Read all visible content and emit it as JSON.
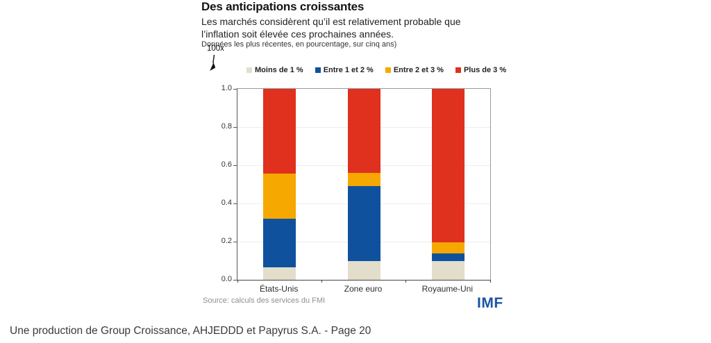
{
  "page": {
    "footer_text": "Une production de Group Croissance, AHJEDDD et Papyrus S.A. - Page 20"
  },
  "figure": {
    "title": "Des anticipations croissantes",
    "subtitle": "Les marchés considèrent qu’il est relativement probable que l’inflation soit élevée ces prochaines années.",
    "note": "Données les plus récentes, en pourcentage, sur cinq ans)",
    "scale_annotation": "100x",
    "source": "Source: calculs des services du FMI",
    "logo_text": "IMF",
    "logo_color": "#1a54a3"
  },
  "chart_data": {
    "type": "bar",
    "stacked": true,
    "title": "Des anticipations croissantes",
    "xlabel": "",
    "ylabel": "",
    "ylim": [
      0.0,
      1.0
    ],
    "grid": true,
    "legend_position": "top",
    "categories": [
      "États-Unis",
      "Zone euro",
      "Royaume-Uni"
    ],
    "series": [
      {
        "name": "Moins de 1 %",
        "color": "#e2decb",
        "values": [
          0.065,
          0.1,
          0.1
        ]
      },
      {
        "name": "Entre 1 et 2 %",
        "color": "#10519e",
        "values": [
          0.255,
          0.39,
          0.04
        ]
      },
      {
        "name": "Entre 2 et 3 %",
        "color": "#f6a800",
        "values": [
          0.235,
          0.07,
          0.055
        ]
      },
      {
        "name": "Plus de 3 %",
        "color": "#e0301e",
        "values": [
          0.445,
          0.44,
          0.805
        ]
      }
    ],
    "yticks": [
      {
        "label": "0.0",
        "value": 0.0
      },
      {
        "label": "0.2",
        "value": 0.2
      },
      {
        "label": "0.4",
        "value": 0.4
      },
      {
        "label": "0.6",
        "value": 0.6
      },
      {
        "label": "0.8",
        "value": 0.8
      },
      {
        "label": "1.0",
        "value": 1.0
      }
    ]
  }
}
